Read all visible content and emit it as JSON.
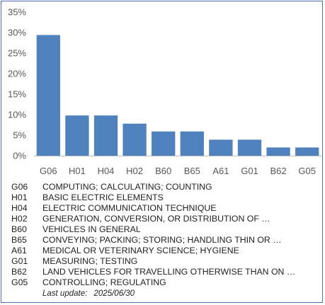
{
  "chart_data": {
    "type": "bar",
    "categories": [
      "G06",
      "H01",
      "H04",
      "H02",
      "B60",
      "B65",
      "A61",
      "G01",
      "B62",
      "G05"
    ],
    "values": [
      29.4,
      9.8,
      9.8,
      7.8,
      5.9,
      5.9,
      3.9,
      3.9,
      2.0,
      2.0
    ],
    "ylim": [
      0,
      35
    ],
    "yticks": [
      "0%",
      "5%",
      "10%",
      "15%",
      "20%",
      "25%",
      "30%",
      "35%"
    ],
    "ytick_values": [
      0,
      5,
      10,
      15,
      20,
      25,
      30,
      35
    ],
    "grid": false,
    "bar_color": "#4f81bd"
  },
  "legend": [
    {
      "code": "G06",
      "desc": "COMPUTING; CALCULATING; COUNTING"
    },
    {
      "code": "H01",
      "desc": "BASIC ELECTRIC ELEMENTS"
    },
    {
      "code": "H04",
      "desc": "ELECTRIC COMMUNICATION TECHNIQUE"
    },
    {
      "code": "H02",
      "desc": "GENERATION, CONVERSION, OR DISTRIBUTION OF …"
    },
    {
      "code": "B60",
      "desc": "VEHICLES IN GENERAL"
    },
    {
      "code": "B65",
      "desc": "CONVEYING; PACKING; STORING; HANDLING THIN OR …"
    },
    {
      "code": "A61",
      "desc": "MEDICAL OR VETERINARY SCIENCE; HYGIENE"
    },
    {
      "code": "G01",
      "desc": "MEASURING; TESTING"
    },
    {
      "code": "B62",
      "desc": "LAND VEHICLES FOR TRAVELLING OTHERWISE THAN ON …"
    },
    {
      "code": "G05",
      "desc": "CONTROLLING; REGULATING"
    }
  ],
  "update": {
    "label": "Last update:",
    "date": "2025/06/30"
  },
  "colors": {
    "border": "#4a72b0",
    "axis": "#bfbfbf",
    "text": "#595959"
  }
}
